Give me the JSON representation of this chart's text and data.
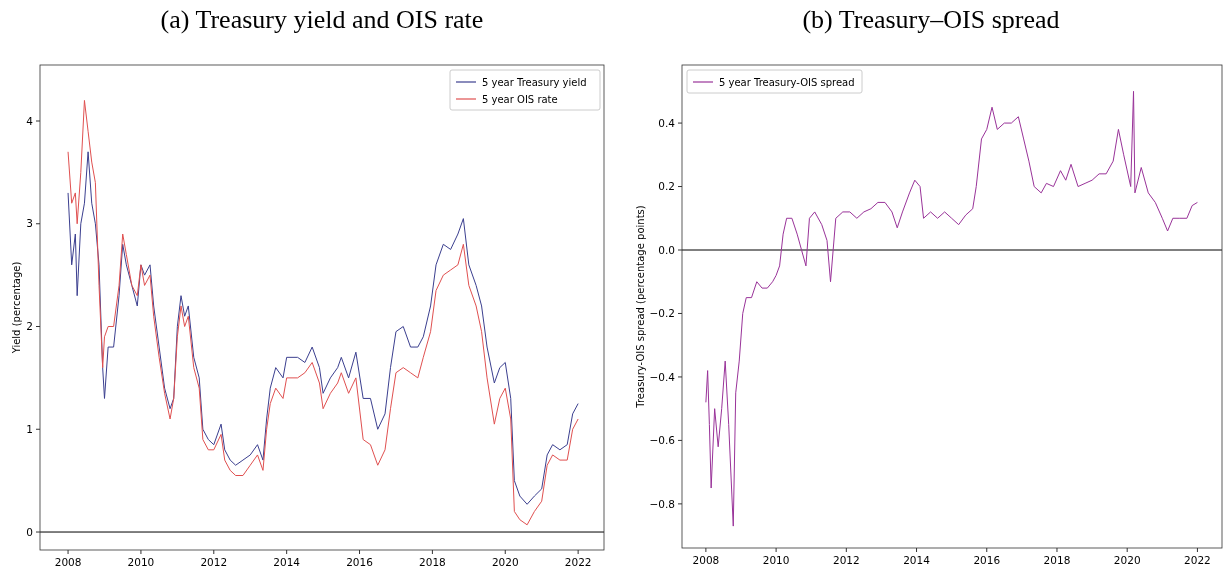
{
  "chart_data": [
    {
      "type": "line",
      "title": "(a) Treasury yield and OIS rate",
      "ylabel": "Yield (percentage)",
      "xlim": [
        2007.23,
        2022.71
      ],
      "xticks": [
        2008,
        2010,
        2012,
        2014,
        2016,
        2018,
        2020,
        2022
      ],
      "ylim": [
        -0.175,
        4.545
      ],
      "yticks": [
        0,
        1,
        2,
        3,
        4
      ],
      "grid": false,
      "legend": "top right",
      "ref_lines": [
        {
          "axis": "y",
          "value": 0,
          "color": "#000000"
        }
      ],
      "x": [
        2008.0,
        2008.1,
        2008.2,
        2008.25,
        2008.35,
        2008.45,
        2008.55,
        2008.65,
        2008.75,
        2008.85,
        2008.95,
        2009.0,
        2009.1,
        2009.25,
        2009.4,
        2009.5,
        2009.6,
        2009.75,
        2009.9,
        2010.0,
        2010.1,
        2010.25,
        2010.35,
        2010.5,
        2010.65,
        2010.8,
        2010.9,
        2011.0,
        2011.1,
        2011.2,
        2011.3,
        2011.45,
        2011.6,
        2011.7,
        2011.85,
        2012.0,
        2012.2,
        2012.3,
        2012.45,
        2012.6,
        2012.8,
        2013.0,
        2013.2,
        2013.35,
        2013.45,
        2013.55,
        2013.7,
        2013.9,
        2014.0,
        2014.3,
        2014.5,
        2014.7,
        2014.9,
        2015.0,
        2015.2,
        2015.4,
        2015.5,
        2015.7,
        2015.9,
        2016.1,
        2016.3,
        2016.5,
        2016.7,
        2016.85,
        2017.0,
        2017.2,
        2017.4,
        2017.6,
        2017.75,
        2017.95,
        2018.1,
        2018.3,
        2018.5,
        2018.7,
        2018.85,
        2019.0,
        2019.2,
        2019.35,
        2019.5,
        2019.7,
        2019.85,
        2020.0,
        2020.15,
        2020.25,
        2020.4,
        2020.6,
        2020.8,
        2021.0,
        2021.15,
        2021.3,
        2021.5,
        2021.7,
        2021.85,
        2022.0
      ],
      "series": [
        {
          "name": "5 year Treasury yield",
          "color": "#3b3f8f",
          "values": [
            3.3,
            2.6,
            2.9,
            2.3,
            3.0,
            3.2,
            3.7,
            3.2,
            3.0,
            2.6,
            1.6,
            1.3,
            1.8,
            1.8,
            2.3,
            2.8,
            2.6,
            2.4,
            2.2,
            2.6,
            2.5,
            2.6,
            2.2,
            1.8,
            1.4,
            1.2,
            1.3,
            2.0,
            2.3,
            2.1,
            2.2,
            1.7,
            1.5,
            1.0,
            0.9,
            0.85,
            1.05,
            0.8,
            0.7,
            0.65,
            0.7,
            0.75,
            0.85,
            0.7,
            1.1,
            1.4,
            1.6,
            1.5,
            1.7,
            1.7,
            1.65,
            1.8,
            1.6,
            1.35,
            1.5,
            1.6,
            1.7,
            1.5,
            1.75,
            1.3,
            1.3,
            1.0,
            1.15,
            1.6,
            1.95,
            2.0,
            1.8,
            1.8,
            1.9,
            2.2,
            2.6,
            2.8,
            2.75,
            2.9,
            3.05,
            2.6,
            2.4,
            2.2,
            1.8,
            1.45,
            1.6,
            1.65,
            1.3,
            0.5,
            0.35,
            0.27,
            0.35,
            0.42,
            0.75,
            0.85,
            0.8,
            0.85,
            1.15,
            1.25
          ]
        },
        {
          "name": "5 year OIS rate",
          "color": "#e05050",
          "values": [
            3.7,
            3.2,
            3.3,
            3.0,
            3.5,
            4.2,
            3.9,
            3.6,
            3.4,
            2.4,
            1.6,
            1.9,
            2.0,
            2.0,
            2.4,
            2.9,
            2.7,
            2.4,
            2.3,
            2.6,
            2.4,
            2.5,
            2.1,
            1.7,
            1.35,
            1.1,
            1.3,
            1.9,
            2.2,
            2.0,
            2.1,
            1.6,
            1.4,
            0.9,
            0.8,
            0.8,
            0.95,
            0.7,
            0.6,
            0.55,
            0.55,
            0.65,
            0.75,
            0.6,
            1.0,
            1.25,
            1.4,
            1.3,
            1.5,
            1.5,
            1.55,
            1.65,
            1.45,
            1.2,
            1.35,
            1.45,
            1.55,
            1.35,
            1.5,
            0.9,
            0.85,
            0.65,
            0.8,
            1.2,
            1.55,
            1.6,
            1.55,
            1.5,
            1.7,
            1.95,
            2.35,
            2.5,
            2.55,
            2.6,
            2.8,
            2.4,
            2.2,
            1.95,
            1.5,
            1.05,
            1.3,
            1.4,
            1.1,
            0.2,
            0.12,
            0.07,
            0.2,
            0.3,
            0.65,
            0.75,
            0.7,
            0.7,
            1.0,
            1.1
          ]
        }
      ]
    },
    {
      "type": "line",
      "title": "(b) Treasury–OIS spread",
      "ylabel": "Treasury-OIS spread (percentage points)",
      "xlim": [
        2007.32,
        2022.7
      ],
      "xticks": [
        2008,
        2010,
        2012,
        2014,
        2016,
        2018,
        2020,
        2022
      ],
      "ylim": [
        -0.939,
        0.583
      ],
      "yticks": [
        {
          "value": -0.8,
          "label": "−0.8"
        },
        {
          "value": -0.6,
          "label": "−0.6"
        },
        {
          "value": -0.4,
          "label": "−0.4"
        },
        {
          "value": -0.2,
          "label": "−0.2"
        },
        {
          "value": 0,
          "label": "0.0"
        },
        0.2,
        0.4
      ],
      "grid": false,
      "legend": "top left",
      "ref_lines": [
        {
          "axis": "y",
          "value": 0,
          "color": "#000000"
        }
      ],
      "x": [
        2008.0,
        2008.05,
        2008.1,
        2008.15,
        2008.25,
        2008.35,
        2008.45,
        2008.55,
        2008.65,
        2008.78,
        2008.85,
        2008.95,
        2009.05,
        2009.15,
        2009.3,
        2009.45,
        2009.6,
        2009.75,
        2009.9,
        2010.0,
        2010.1,
        2010.2,
        2010.3,
        2010.45,
        2010.6,
        2010.85,
        2010.95,
        2011.1,
        2011.3,
        2011.45,
        2011.55,
        2011.7,
        2011.9,
        2012.1,
        2012.3,
        2012.5,
        2012.7,
        2012.9,
        2013.1,
        2013.3,
        2013.45,
        2013.6,
        2013.8,
        2013.95,
        2014.1,
        2014.2,
        2014.4,
        2014.6,
        2014.8,
        2015.0,
        2015.2,
        2015.4,
        2015.6,
        2015.7,
        2015.85,
        2016.0,
        2016.15,
        2016.3,
        2016.5,
        2016.7,
        2016.9,
        2017.05,
        2017.2,
        2017.35,
        2017.55,
        2017.7,
        2017.9,
        2018.1,
        2018.25,
        2018.4,
        2018.6,
        2018.8,
        2019.0,
        2019.2,
        2019.4,
        2019.6,
        2019.75,
        2019.9,
        2020.1,
        2020.18,
        2020.22,
        2020.4,
        2020.6,
        2020.8,
        2021.0,
        2021.15,
        2021.3,
        2021.5,
        2021.7,
        2021.85,
        2022.0
      ],
      "series": [
        {
          "name": "5 year Treasury-OIS spread",
          "color": "#993399",
          "values": [
            -0.48,
            -0.38,
            -0.55,
            -0.75,
            -0.5,
            -0.62,
            -0.5,
            -0.35,
            -0.55,
            -0.87,
            -0.45,
            -0.35,
            -0.2,
            -0.15,
            -0.15,
            -0.1,
            -0.12,
            -0.12,
            -0.1,
            -0.08,
            -0.05,
            0.05,
            0.1,
            0.1,
            0.05,
            -0.05,
            0.1,
            0.12,
            0.08,
            0.03,
            -0.1,
            0.1,
            0.12,
            0.12,
            0.1,
            0.12,
            0.13,
            0.15,
            0.15,
            0.12,
            0.07,
            0.12,
            0.18,
            0.22,
            0.2,
            0.1,
            0.12,
            0.1,
            0.12,
            0.1,
            0.08,
            0.11,
            0.13,
            0.2,
            0.35,
            0.38,
            0.45,
            0.38,
            0.4,
            0.4,
            0.42,
            0.35,
            0.28,
            0.2,
            0.18,
            0.21,
            0.2,
            0.25,
            0.22,
            0.27,
            0.2,
            0.21,
            0.22,
            0.24,
            0.24,
            0.28,
            0.38,
            0.3,
            0.2,
            0.5,
            0.18,
            0.26,
            0.18,
            0.15,
            0.1,
            0.06,
            0.1,
            0.1,
            0.1,
            0.14,
            0.15
          ]
        }
      ]
    }
  ]
}
